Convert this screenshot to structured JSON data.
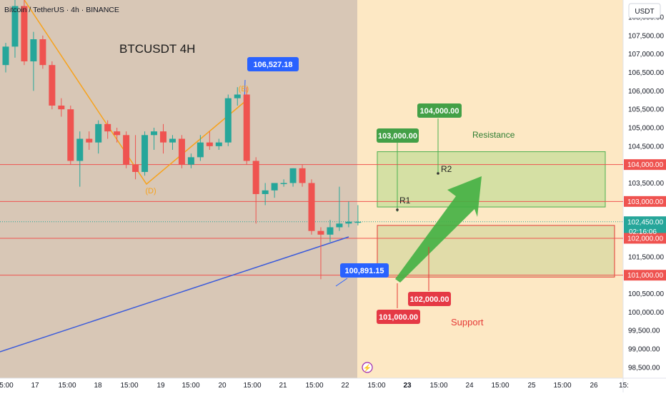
{
  "header": {
    "symbol_line": "Bitcoin / TetherUS · 4h · BINANCE"
  },
  "chart_title": "BTCUSDT 4H",
  "currency_badge": "USDT",
  "countdown": "02:16:06",
  "colors": {
    "background": "#fde8c4",
    "shaded_region": "#d8c7b6",
    "candle_up": "#26a69a",
    "candle_down": "#ef5350",
    "wave_line": "#f7a21b",
    "trend_line": "#3b5bdb",
    "resistance_zone": "#4caf50",
    "support_zone": "#e53935",
    "callout_blue": "#2962ff",
    "callout_green": "#43a047",
    "callout_red": "#e53945",
    "arrow": "#43b043"
  },
  "chart_data": {
    "type": "candlestick",
    "title": "BTCUSDT 4H",
    "y_axis": {
      "ticks": [
        108000,
        107500,
        107000,
        106500,
        106000,
        105500,
        105000,
        104500,
        104000,
        103500,
        103000,
        102500,
        102000,
        101500,
        101000,
        100500,
        100000,
        99500,
        99000,
        98500
      ],
      "tick_labels": [
        "108,000.00",
        "107,500.00",
        "107,000.00",
        "106,500.00",
        "106,000.00",
        "105,500.00",
        "105,000.00",
        "104,500.00",
        "104,000.00",
        "103,500.00",
        "103,000.00",
        "102,500.00",
        "102,000.00",
        "101,500.00",
        "101,000.00",
        "100,500.00",
        "100,000.00",
        "99,500.00",
        "99,000.00",
        "98,500.00"
      ],
      "range": [
        98400,
        108300
      ]
    },
    "x_axis": {
      "tick_labels": [
        "5:00",
        "17",
        "15:00",
        "18",
        "15:00",
        "19",
        "15:00",
        "20",
        "15:00",
        "21",
        "15:00",
        "22",
        "15:00",
        "23",
        "15:00",
        "24",
        "15:00",
        "25",
        "15:00",
        "26",
        "15:"
      ]
    },
    "candles": [
      {
        "o": 106700,
        "h": 107300,
        "l": 106500,
        "c": 107200
      },
      {
        "o": 107200,
        "h": 108600,
        "l": 106900,
        "c": 108300
      },
      {
        "o": 108300,
        "h": 108500,
        "l": 106700,
        "c": 106800
      },
      {
        "o": 106800,
        "h": 107600,
        "l": 106000,
        "c": 107400
      },
      {
        "o": 107400,
        "h": 107500,
        "l": 106600,
        "c": 106700
      },
      {
        "o": 106700,
        "h": 106800,
        "l": 105500,
        "c": 105600
      },
      {
        "o": 105600,
        "h": 105800,
        "l": 105300,
        "c": 105500
      },
      {
        "o": 105500,
        "h": 105600,
        "l": 104000,
        "c": 104100
      },
      {
        "o": 104100,
        "h": 104900,
        "l": 103400,
        "c": 104700
      },
      {
        "o": 104700,
        "h": 104900,
        "l": 104400,
        "c": 104600
      },
      {
        "o": 104600,
        "h": 105200,
        "l": 104300,
        "c": 105100
      },
      {
        "o": 105100,
        "h": 105200,
        "l": 104700,
        "c": 104900
      },
      {
        "o": 104900,
        "h": 105000,
        "l": 104600,
        "c": 104800
      },
      {
        "o": 104800,
        "h": 104900,
        "l": 103900,
        "c": 104000
      },
      {
        "o": 104000,
        "h": 104800,
        "l": 103600,
        "c": 103800
      },
      {
        "o": 103800,
        "h": 104900,
        "l": 103700,
        "c": 104800
      },
      {
        "o": 104800,
        "h": 105000,
        "l": 104400,
        "c": 104900
      },
      {
        "o": 104900,
        "h": 105100,
        "l": 104300,
        "c": 104600
      },
      {
        "o": 104600,
        "h": 104800,
        "l": 104400,
        "c": 104700
      },
      {
        "o": 104700,
        "h": 104800,
        "l": 103900,
        "c": 104000
      },
      {
        "o": 104000,
        "h": 104300,
        "l": 103900,
        "c": 104200
      },
      {
        "o": 104200,
        "h": 104800,
        "l": 104100,
        "c": 104600
      },
      {
        "o": 104600,
        "h": 104900,
        "l": 104400,
        "c": 104500
      },
      {
        "o": 104500,
        "h": 104700,
        "l": 104400,
        "c": 104600
      },
      {
        "o": 104600,
        "h": 105900,
        "l": 104500,
        "c": 105800
      },
      {
        "o": 105800,
        "h": 106100,
        "l": 105600,
        "c": 105900
      },
      {
        "o": 105900,
        "h": 106100,
        "l": 104000,
        "c": 104100
      },
      {
        "o": 104100,
        "h": 104200,
        "l": 102400,
        "c": 103200
      },
      {
        "o": 103200,
        "h": 103500,
        "l": 102900,
        "c": 103300
      },
      {
        "o": 103300,
        "h": 103500,
        "l": 103100,
        "c": 103500
      },
      {
        "o": 103500,
        "h": 103600,
        "l": 103400,
        "c": 103500
      },
      {
        "o": 103500,
        "h": 103900,
        "l": 103400,
        "c": 103900
      },
      {
        "o": 103900,
        "h": 104000,
        "l": 103400,
        "c": 103500
      },
      {
        "o": 103500,
        "h": 103600,
        "l": 102100,
        "c": 102200
      },
      {
        "o": 102200,
        "h": 102300,
        "l": 100891.15,
        "c": 102100
      },
      {
        "o": 102100,
        "h": 102500,
        "l": 101900,
        "c": 102300
      },
      {
        "o": 102300,
        "h": 103400,
        "l": 102200,
        "c": 102400
      },
      {
        "o": 102400,
        "h": 103000,
        "l": 102300,
        "c": 102450
      },
      {
        "o": 102450,
        "h": 102900,
        "l": 102350,
        "c": 102450
      }
    ],
    "levels": [
      {
        "price": 104000,
        "label": "104,000.00"
      },
      {
        "price": 103000,
        "label": "103,000.00"
      },
      {
        "price": 102450,
        "label": "102,450.00",
        "kind": "current"
      },
      {
        "price": 102000,
        "label": "102,000.00"
      },
      {
        "price": 101000,
        "label": "101,000.00"
      }
    ],
    "zones": [
      {
        "name": "Resistance",
        "top": 104350,
        "bottom": 102850
      },
      {
        "name": "Support",
        "top": 102350,
        "bottom": 100950
      }
    ],
    "annotations": {
      "wave_labels": [
        "(E)",
        "(D)"
      ],
      "r1": "R1",
      "r2": "R2",
      "resistance_label": "Resistance",
      "support_label": "Support",
      "callouts": [
        {
          "text": "106,527.18",
          "color": "blue"
        },
        {
          "text": "100,891.15",
          "color": "blue"
        },
        {
          "text": "103,000.00",
          "color": "green"
        },
        {
          "text": "104,000.00",
          "color": "green"
        },
        {
          "text": "102,000.00",
          "color": "red"
        },
        {
          "text": "101,000.00",
          "color": "red"
        }
      ]
    }
  }
}
